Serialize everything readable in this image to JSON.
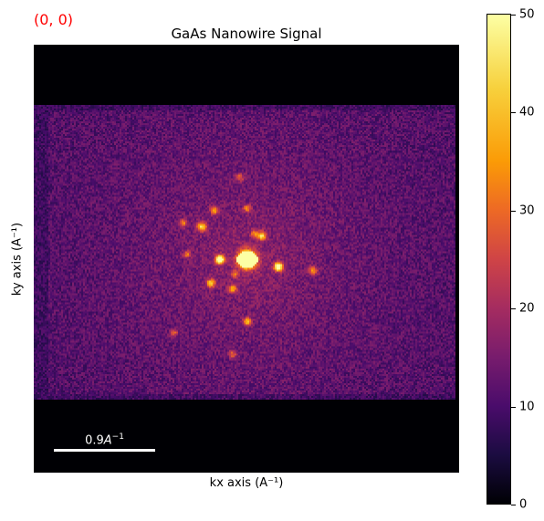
{
  "coordinate_readout": "(0, 0)",
  "chart_data": {
    "type": "heatmap",
    "title": "GaAs Nanowire Signal",
    "xlabel": "kx axis (A⁻¹)",
    "ylabel": "ky axis (A⁻¹)",
    "colormap": "inferno",
    "value_range": [
      0,
      50
    ],
    "colorbar_ticks": [
      0,
      10,
      20,
      30,
      40,
      50
    ],
    "background_value": 0,
    "noise_level": 10,
    "scalebar": {
      "label": "0.9",
      "unit": "A⁻¹"
    },
    "bright_spots": [
      {
        "name": "central",
        "value": 50
      },
      {
        "name": "neighbor-left",
        "value": 45
      },
      {
        "name": "neighbor-right",
        "value": 45
      }
    ]
  },
  "colors": {
    "coordinate_readout": "#ff0000",
    "scalebar": "#ffffff"
  }
}
